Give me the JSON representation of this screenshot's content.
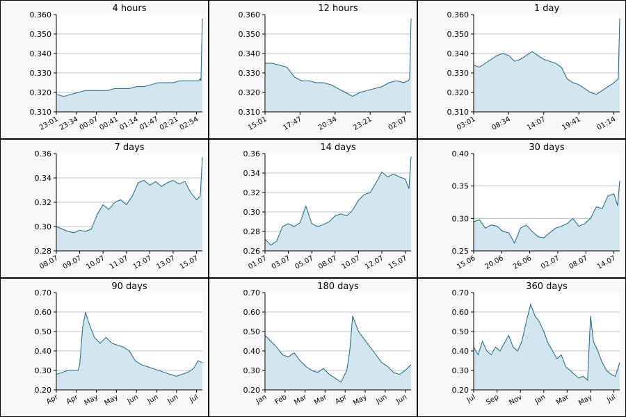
{
  "colors": {
    "line": "#1a6680",
    "fill": "#d3e5ee",
    "grid": "#b8c2c8",
    "panel_bg": "#f8f8f8"
  },
  "chart_data": [
    {
      "type": "area",
      "title": "4 hours",
      "grid": true,
      "ylim": [
        0.31,
        0.36
      ],
      "yticks": [
        "0.310",
        "0.320",
        "0.330",
        "0.340",
        "0.350",
        "0.360"
      ],
      "xticks": [
        "23:01",
        "23:34",
        "00:07",
        "00:41",
        "01:14",
        "01:47",
        "02:21",
        "02:54"
      ],
      "x": [
        0,
        0.05,
        0.1,
        0.15,
        0.2,
        0.25,
        0.3,
        0.35,
        0.4,
        0.45,
        0.5,
        0.55,
        0.6,
        0.65,
        0.7,
        0.75,
        0.8,
        0.85,
        0.9,
        0.95,
        0.975,
        0.985,
        0.99,
        0.995,
        1
      ],
      "y": [
        0.319,
        0.318,
        0.319,
        0.32,
        0.321,
        0.321,
        0.321,
        0.321,
        0.322,
        0.322,
        0.322,
        0.323,
        0.323,
        0.324,
        0.325,
        0.325,
        0.325,
        0.326,
        0.326,
        0.326,
        0.326,
        0.327,
        0.326,
        0.343,
        0.358
      ]
    },
    {
      "type": "area",
      "title": "12 hours",
      "grid": true,
      "ylim": [
        0.31,
        0.36
      ],
      "yticks": [
        "0.310",
        "0.320",
        "0.330",
        "0.340",
        "0.350",
        "0.360"
      ],
      "xticks": [
        "15:01",
        "17:47",
        "20:34",
        "23:21",
        "02:07"
      ],
      "x": [
        0,
        0.05,
        0.1,
        0.15,
        0.2,
        0.25,
        0.3,
        0.35,
        0.4,
        0.45,
        0.5,
        0.55,
        0.6,
        0.65,
        0.7,
        0.75,
        0.8,
        0.85,
        0.9,
        0.95,
        0.98,
        0.99,
        1
      ],
      "y": [
        0.335,
        0.335,
        0.334,
        0.333,
        0.328,
        0.326,
        0.326,
        0.325,
        0.325,
        0.324,
        0.322,
        0.32,
        0.318,
        0.32,
        0.321,
        0.322,
        0.323,
        0.325,
        0.326,
        0.325,
        0.326,
        0.327,
        0.358
      ]
    },
    {
      "type": "area",
      "title": "1 day",
      "grid": true,
      "ylim": [
        0.31,
        0.36
      ],
      "yticks": [
        "0.310",
        "0.320",
        "0.330",
        "0.340",
        "0.350",
        "0.360"
      ],
      "xticks": [
        "03:01",
        "08:34",
        "14:07",
        "19:41",
        "01:14"
      ],
      "x": [
        0,
        0.04,
        0.08,
        0.12,
        0.16,
        0.2,
        0.24,
        0.28,
        0.32,
        0.36,
        0.4,
        0.44,
        0.48,
        0.52,
        0.56,
        0.6,
        0.64,
        0.68,
        0.72,
        0.76,
        0.8,
        0.84,
        0.88,
        0.92,
        0.96,
        0.99,
        1
      ],
      "y": [
        0.334,
        0.333,
        0.335,
        0.337,
        0.339,
        0.34,
        0.339,
        0.336,
        0.337,
        0.339,
        0.341,
        0.339,
        0.337,
        0.336,
        0.335,
        0.333,
        0.327,
        0.325,
        0.324,
        0.322,
        0.32,
        0.319,
        0.321,
        0.323,
        0.325,
        0.327,
        0.358
      ]
    },
    {
      "type": "area",
      "title": "7 days",
      "grid": true,
      "ylim": [
        0.28,
        0.36
      ],
      "yticks": [
        "0.28",
        "0.30",
        "0.32",
        "0.34",
        "0.36"
      ],
      "xticks": [
        "08.07",
        "09.07",
        "10.07",
        "11.07",
        "12.07",
        "13.07",
        "15.07"
      ],
      "x": [
        0,
        0.04,
        0.08,
        0.12,
        0.16,
        0.2,
        0.24,
        0.28,
        0.32,
        0.36,
        0.4,
        0.44,
        0.48,
        0.52,
        0.56,
        0.6,
        0.64,
        0.68,
        0.72,
        0.76,
        0.8,
        0.84,
        0.88,
        0.92,
        0.96,
        0.985,
        1
      ],
      "y": [
        0.3,
        0.298,
        0.296,
        0.295,
        0.297,
        0.296,
        0.298,
        0.31,
        0.318,
        0.314,
        0.32,
        0.322,
        0.318,
        0.325,
        0.336,
        0.338,
        0.334,
        0.337,
        0.333,
        0.336,
        0.338,
        0.335,
        0.337,
        0.328,
        0.322,
        0.325,
        0.357
      ]
    },
    {
      "type": "area",
      "title": "14 days",
      "grid": true,
      "ylim": [
        0.26,
        0.36
      ],
      "yticks": [
        "0.26",
        "0.28",
        "0.30",
        "0.32",
        "0.34",
        "0.36"
      ],
      "xticks": [
        "01.07",
        "03.07",
        "05.07",
        "08.07",
        "10.07",
        "12.07",
        "15.07"
      ],
      "x": [
        0,
        0.04,
        0.08,
        0.12,
        0.16,
        0.2,
        0.24,
        0.28,
        0.32,
        0.36,
        0.4,
        0.44,
        0.48,
        0.52,
        0.56,
        0.6,
        0.64,
        0.68,
        0.72,
        0.76,
        0.8,
        0.84,
        0.88,
        0.92,
        0.96,
        0.985,
        1
      ],
      "y": [
        0.272,
        0.266,
        0.27,
        0.285,
        0.288,
        0.285,
        0.289,
        0.306,
        0.288,
        0.285,
        0.287,
        0.29,
        0.296,
        0.298,
        0.296,
        0.302,
        0.312,
        0.318,
        0.32,
        0.33,
        0.341,
        0.336,
        0.339,
        0.336,
        0.334,
        0.324,
        0.357
      ]
    },
    {
      "type": "area",
      "title": "30 days",
      "grid": true,
      "ylim": [
        0.25,
        0.4
      ],
      "yticks": [
        "0.25",
        "0.30",
        "0.35",
        "0.40"
      ],
      "xticks": [
        "15.06",
        "20.06",
        "26.06",
        "02.07",
        "08.07",
        "14.07"
      ],
      "x": [
        0,
        0.04,
        0.08,
        0.12,
        0.16,
        0.2,
        0.24,
        0.28,
        0.32,
        0.36,
        0.4,
        0.44,
        0.48,
        0.52,
        0.56,
        0.6,
        0.64,
        0.68,
        0.72,
        0.76,
        0.8,
        0.84,
        0.88,
        0.92,
        0.96,
        0.985,
        1
      ],
      "y": [
        0.295,
        0.298,
        0.285,
        0.29,
        0.288,
        0.28,
        0.278,
        0.262,
        0.285,
        0.29,
        0.28,
        0.272,
        0.27,
        0.278,
        0.285,
        0.288,
        0.292,
        0.3,
        0.288,
        0.292,
        0.3,
        0.318,
        0.315,
        0.335,
        0.338,
        0.32,
        0.358
      ]
    },
    {
      "type": "area",
      "title": "90 days",
      "grid": true,
      "ylim": [
        0.2,
        0.7
      ],
      "yticks": [
        "0.20",
        "0.30",
        "0.40",
        "0.50",
        "0.60",
        "0.70"
      ],
      "xticks": [
        "Apr",
        "Apr",
        "May",
        "May",
        "Jun",
        "Jun",
        "Jun",
        "Jul"
      ],
      "x": [
        0,
        0.04,
        0.08,
        0.12,
        0.15,
        0.16,
        0.18,
        0.2,
        0.22,
        0.26,
        0.3,
        0.34,
        0.38,
        0.42,
        0.46,
        0.5,
        0.54,
        0.58,
        0.62,
        0.66,
        0.7,
        0.74,
        0.78,
        0.82,
        0.86,
        0.9,
        0.94,
        0.97,
        1
      ],
      "y": [
        0.28,
        0.29,
        0.3,
        0.3,
        0.3,
        0.33,
        0.52,
        0.6,
        0.55,
        0.47,
        0.44,
        0.47,
        0.44,
        0.43,
        0.42,
        0.4,
        0.35,
        0.33,
        0.32,
        0.31,
        0.3,
        0.29,
        0.28,
        0.27,
        0.28,
        0.29,
        0.31,
        0.35,
        0.34
      ]
    },
    {
      "type": "area",
      "title": "180 days",
      "grid": true,
      "ylim": [
        0.2,
        0.7
      ],
      "yticks": [
        "0.20",
        "0.30",
        "0.40",
        "0.50",
        "0.60",
        "0.70"
      ],
      "xticks": [
        "Jan",
        "Feb",
        "Mar",
        "Mar",
        "Apr",
        "May",
        "Jun",
        "Jun"
      ],
      "x": [
        0,
        0.04,
        0.08,
        0.12,
        0.16,
        0.2,
        0.24,
        0.28,
        0.32,
        0.36,
        0.4,
        0.44,
        0.48,
        0.52,
        0.54,
        0.56,
        0.58,
        0.6,
        0.64,
        0.68,
        0.72,
        0.76,
        0.8,
        0.84,
        0.88,
        0.92,
        0.96,
        1
      ],
      "y": [
        0.48,
        0.45,
        0.42,
        0.38,
        0.37,
        0.39,
        0.35,
        0.32,
        0.3,
        0.29,
        0.31,
        0.28,
        0.26,
        0.24,
        0.27,
        0.3,
        0.4,
        0.58,
        0.5,
        0.46,
        0.42,
        0.38,
        0.34,
        0.32,
        0.29,
        0.28,
        0.3,
        0.33
      ]
    },
    {
      "type": "area",
      "title": "360 days",
      "grid": true,
      "ylim": [
        0.2,
        0.7
      ],
      "yticks": [
        "0.20",
        "0.30",
        "0.40",
        "0.50",
        "0.60",
        "0.70"
      ],
      "xticks": [
        "Jul",
        "Sep",
        "Nov",
        "Jan",
        "Mar",
        "May",
        "Jul"
      ],
      "x": [
        0,
        0.03,
        0.06,
        0.09,
        0.12,
        0.15,
        0.18,
        0.21,
        0.24,
        0.27,
        0.3,
        0.33,
        0.36,
        0.39,
        0.42,
        0.45,
        0.48,
        0.51,
        0.54,
        0.57,
        0.6,
        0.63,
        0.66,
        0.69,
        0.72,
        0.75,
        0.78,
        0.8,
        0.82,
        0.85,
        0.88,
        0.91,
        0.94,
        0.97,
        1
      ],
      "y": [
        0.42,
        0.38,
        0.45,
        0.4,
        0.38,
        0.42,
        0.4,
        0.44,
        0.48,
        0.42,
        0.4,
        0.45,
        0.55,
        0.64,
        0.58,
        0.55,
        0.5,
        0.44,
        0.4,
        0.36,
        0.38,
        0.32,
        0.3,
        0.28,
        0.26,
        0.27,
        0.25,
        0.58,
        0.45,
        0.4,
        0.34,
        0.3,
        0.28,
        0.27,
        0.34
      ]
    }
  ]
}
